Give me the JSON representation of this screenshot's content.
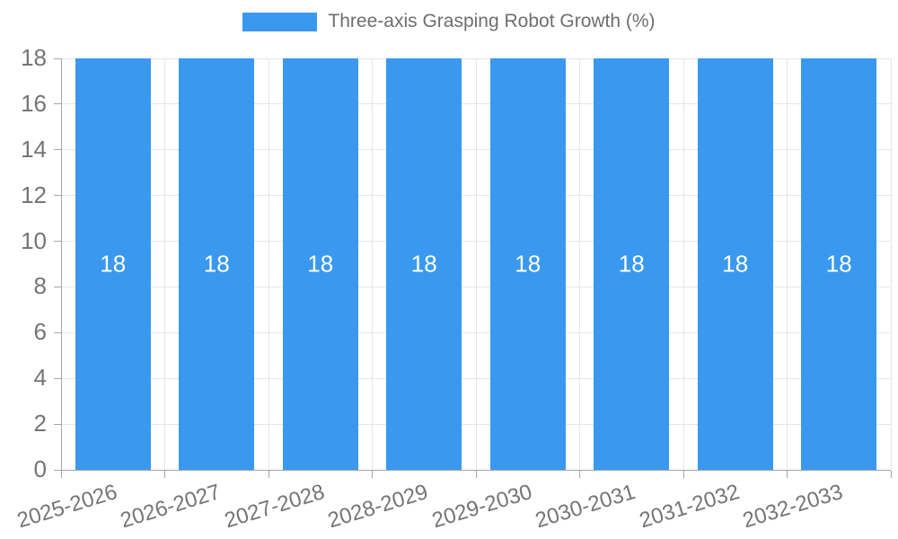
{
  "chart_data": {
    "type": "bar",
    "title": "Three-axis Grasping Robot Growth (%)",
    "categories": [
      "2025-2026",
      "2026-2027",
      "2027-2028",
      "2028-2029",
      "2029-2030",
      "2030-2031",
      "2031-2032",
      "2032-2033"
    ],
    "values": [
      18,
      18,
      18,
      18,
      18,
      18,
      18,
      18
    ],
    "bar_labels": [
      "18",
      "18",
      "18",
      "18",
      "18",
      "18",
      "18",
      "18"
    ],
    "xlabel": "",
    "ylabel": "",
    "ylim": [
      0,
      18
    ],
    "ytick_step": 2,
    "ytick_labels": [
      "0",
      "2",
      "4",
      "6",
      "8",
      "10",
      "12",
      "14",
      "16",
      "18"
    ],
    "grid": true,
    "legend_position": "top",
    "x_label_rotation_deg": -17,
    "colors": {
      "bar": "#3a99ee",
      "bar_label": "#ffffff",
      "axis_text": "#757575",
      "legend_text": "#6e6e6e",
      "grid_line": "#e6e6e6",
      "axis_line": "#a6a6a6"
    }
  }
}
